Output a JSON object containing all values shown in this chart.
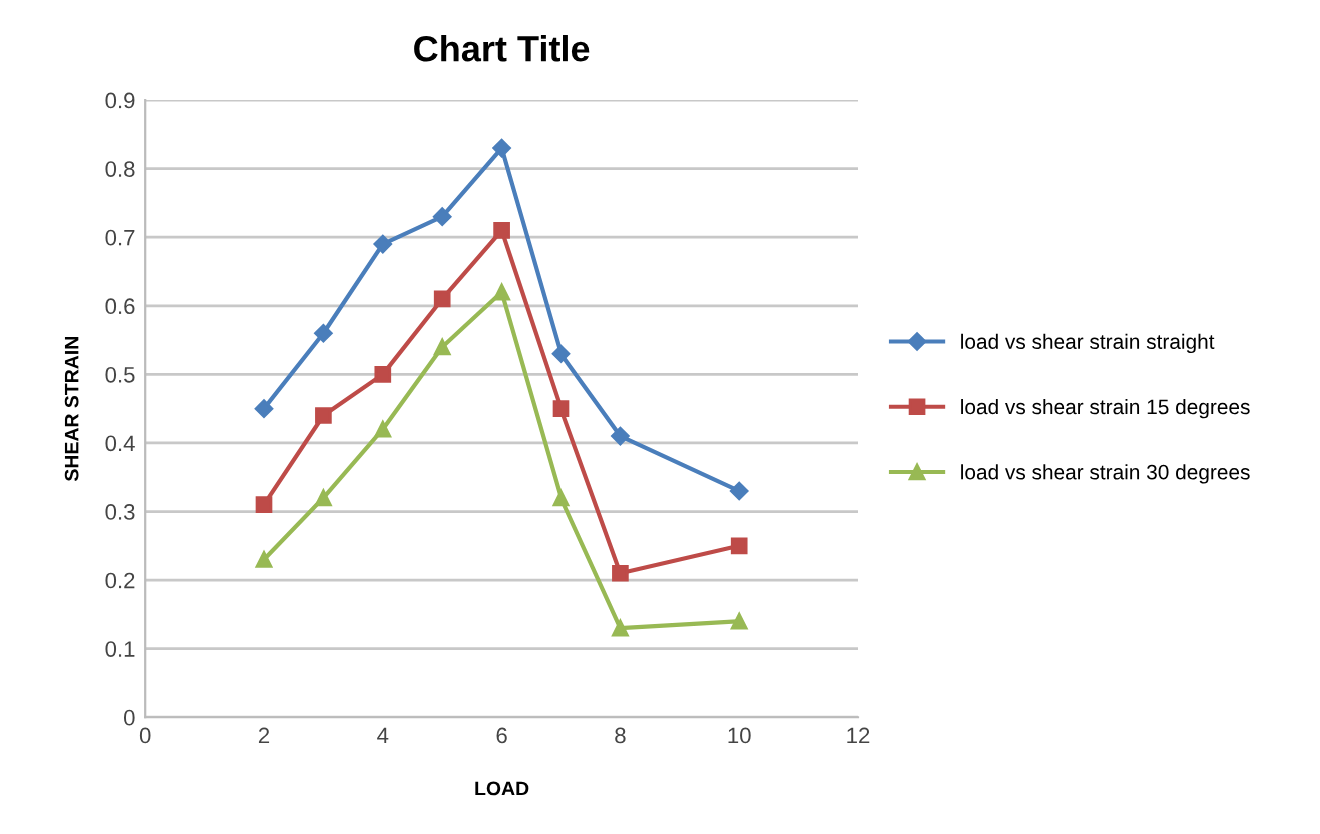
{
  "chart_data": {
    "type": "line",
    "title": "Chart Title",
    "xlabel": "LOAD",
    "ylabel": "SHEAR STRAIN",
    "x": [
      2,
      3,
      4,
      5,
      6,
      7,
      8,
      10
    ],
    "series": [
      {
        "name": "load vs shear strain straight",
        "color": "#4a7ebb",
        "marker": "diamond",
        "values": [
          0.45,
          0.56,
          0.69,
          0.73,
          0.83,
          0.53,
          0.41,
          0.33
        ]
      },
      {
        "name": "load vs shear strain 15 degrees",
        "color": "#be4b48",
        "marker": "square",
        "values": [
          0.31,
          0.44,
          0.5,
          0.61,
          0.71,
          0.45,
          0.21,
          0.25
        ]
      },
      {
        "name": "load vs shear strain 30 degrees",
        "color": "#98b954",
        "marker": "triangle",
        "values": [
          0.23,
          0.32,
          0.42,
          0.54,
          0.62,
          0.32,
          0.13,
          0.14
        ]
      }
    ],
    "xlim": [
      0,
      12
    ],
    "xticks": [
      0,
      2,
      4,
      6,
      8,
      10,
      12
    ],
    "ylim": [
      0,
      0.9
    ],
    "yticks": [
      0,
      0.1,
      0.2,
      0.3,
      0.4,
      0.5,
      0.6,
      0.7,
      0.8,
      0.9
    ],
    "grid": "y",
    "legend": "right",
    "line_style": "solid"
  }
}
